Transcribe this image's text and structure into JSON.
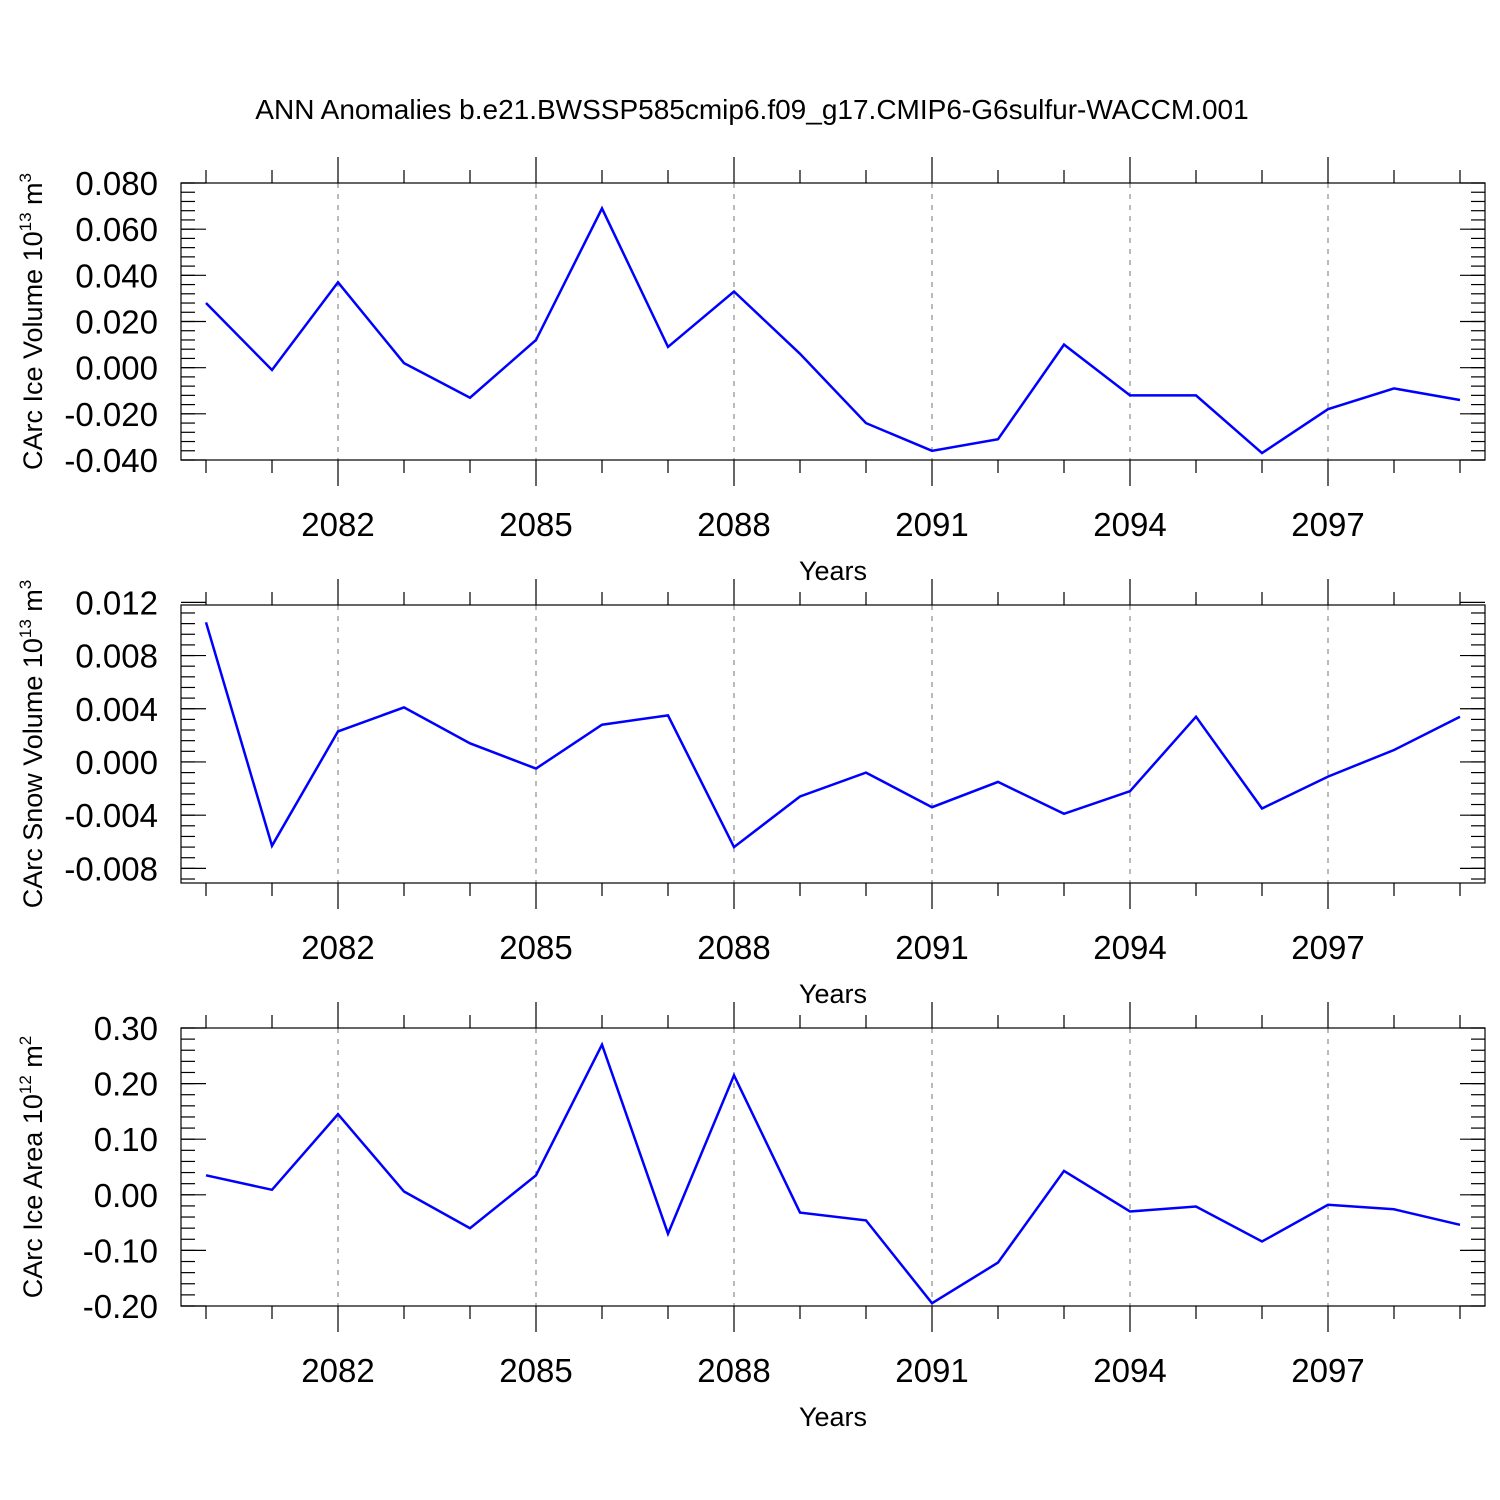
{
  "title": "ANN Anomalies b.e21.BWSSP585cmip6.f09_g17.CMIP6-G6sulfur-WACCM.001",
  "colors": {
    "line": "#0000ff",
    "axes": "#000000",
    "grid": "#8c8c8c"
  },
  "chart_data": [
    {
      "type": "line",
      "ylabel": {
        "text": "CArc Ice Volume 10",
        "sup": "13",
        "unit": " m",
        "unit_sup": "3"
      },
      "xlabel": "Years",
      "xlim": [
        2080,
        2099
      ],
      "ylim": [
        -0.04,
        0.08
      ],
      "xticks": [
        2082,
        2085,
        2088,
        2091,
        2094,
        2097
      ],
      "xtick_labels": [
        "2082",
        "2085",
        "2088",
        "2091",
        "2094",
        "2097"
      ],
      "yticks": [
        0.08,
        0.06,
        0.04,
        0.02,
        0.0,
        -0.02,
        -0.04
      ],
      "ytick_labels": [
        "0.080",
        "0.060",
        "0.040",
        "0.020",
        "0.000",
        "-0.020",
        "-0.040"
      ],
      "grid": "dashed vertical at major x ticks",
      "series": [
        {
          "x": [
            2080,
            2081,
            2082,
            2083,
            2084,
            2085,
            2086,
            2087,
            2088,
            2089,
            2090,
            2091,
            2092,
            2093,
            2094,
            2095,
            2096,
            2097,
            2098,
            2099
          ],
          "y": [
            0.028,
            -0.001,
            0.037,
            0.002,
            -0.013,
            0.012,
            0.069,
            0.009,
            0.033,
            0.006,
            -0.024,
            -0.036,
            -0.031,
            0.01,
            -0.012,
            -0.012,
            -0.037,
            -0.018,
            -0.009,
            -0.014
          ]
        }
      ]
    },
    {
      "type": "line",
      "ylabel": {
        "text": "CArc Snow Volume 10",
        "sup": "13",
        "unit": " m",
        "unit_sup": "3"
      },
      "xlabel": "Years",
      "xlim": [
        2080,
        2099
      ],
      "ylim": [
        -0.0091,
        0.0118
      ],
      "xticks": [
        2082,
        2085,
        2088,
        2091,
        2094,
        2097
      ],
      "xtick_labels": [
        "2082",
        "2085",
        "2088",
        "2091",
        "2094",
        "2097"
      ],
      "yticks": [
        0.012,
        0.008,
        0.004,
        0.0,
        -0.004,
        -0.008
      ],
      "ytick_labels": [
        "0.012",
        "0.008",
        "0.004",
        "0.000",
        "-0.004",
        "-0.008"
      ],
      "grid": "dashed vertical at major x ticks",
      "series": [
        {
          "x": [
            2080,
            2081,
            2082,
            2083,
            2084,
            2085,
            2086,
            2087,
            2088,
            2089,
            2090,
            2091,
            2092,
            2093,
            2094,
            2095,
            2096,
            2097,
            2098,
            2099
          ],
          "y": [
            0.0105,
            -0.0063,
            0.0023,
            0.0041,
            0.0014,
            -0.0005,
            0.0028,
            0.0035,
            -0.0064,
            -0.0026,
            -0.0008,
            -0.0034,
            -0.0015,
            -0.0039,
            -0.0022,
            0.0034,
            -0.0035,
            -0.0011,
            0.0009,
            0.0034
          ]
        }
      ]
    },
    {
      "type": "line",
      "ylabel": {
        "text": "CArc Ice Area 10",
        "sup": "12",
        "unit": " m",
        "unit_sup": "2"
      },
      "xlabel": "Years",
      "xlim": [
        2080,
        2099
      ],
      "ylim": [
        -0.2,
        0.3
      ],
      "xticks": [
        2082,
        2085,
        2088,
        2091,
        2094,
        2097
      ],
      "xtick_labels": [
        "2082",
        "2085",
        "2088",
        "2091",
        "2094",
        "2097"
      ],
      "yticks": [
        0.3,
        0.2,
        0.1,
        0.0,
        -0.1,
        -0.2
      ],
      "ytick_labels": [
        "0.30",
        "0.20",
        "0.10",
        "0.00",
        "-0.10",
        "-0.20"
      ],
      "grid": "dashed vertical at major x ticks",
      "series": [
        {
          "x": [
            2080,
            2081,
            2082,
            2083,
            2084,
            2085,
            2086,
            2087,
            2088,
            2089,
            2090,
            2091,
            2092,
            2093,
            2094,
            2095,
            2096,
            2097,
            2098,
            2099
          ],
          "y": [
            0.035,
            0.009,
            0.145,
            0.006,
            -0.06,
            0.035,
            0.27,
            -0.07,
            0.215,
            -0.032,
            -0.046,
            -0.195,
            -0.122,
            0.043,
            -0.03,
            -0.021,
            -0.084,
            -0.018,
            -0.026,
            -0.054
          ]
        }
      ]
    }
  ]
}
